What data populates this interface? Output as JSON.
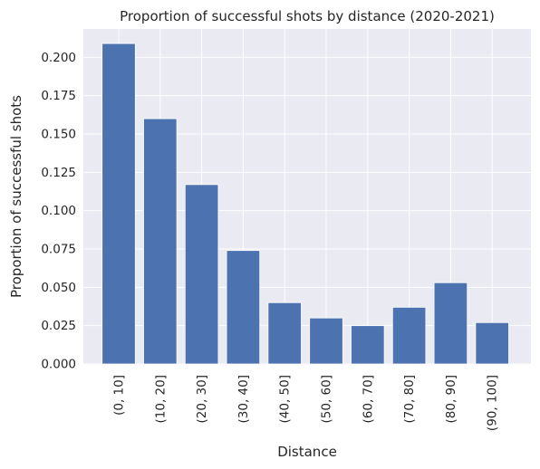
{
  "chart_data": {
    "type": "bar",
    "title": "Proportion of successful shots by distance (2020-2021)",
    "xlabel": "Distance",
    "ylabel": "Proportion of successful shots",
    "categories": [
      "(0, 10]",
      "(10, 20]",
      "(20, 30]",
      "(30, 40]",
      "(40, 50]",
      "(50, 60]",
      "(60, 70]",
      "(70, 80]",
      "(80, 90]",
      "(90, 100]"
    ],
    "values": [
      0.209,
      0.16,
      0.117,
      0.074,
      0.04,
      0.03,
      0.025,
      0.037,
      0.053,
      0.027
    ],
    "ylim": [
      0,
      0.2185
    ],
    "yticks": [
      "0.000",
      "0.025",
      "0.050",
      "0.075",
      "0.100",
      "0.125",
      "0.150",
      "0.175",
      "0.200"
    ],
    "grid": true,
    "colors": {
      "bar": "#4c72b0",
      "background": "#eaeaf2",
      "grid": "#ffffff"
    }
  }
}
